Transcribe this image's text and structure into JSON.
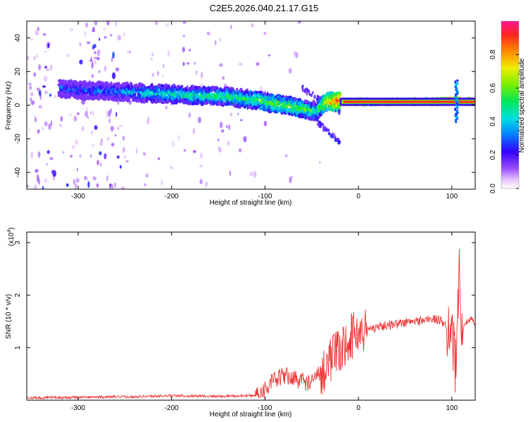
{
  "title": "C2E5.2026.040.21.17.G15",
  "chart_data": [
    {
      "type": "heatmap",
      "xlabel": "Height of straight line (km)",
      "ylabel": "Frequency (Hz)",
      "xlim": [
        -355,
        125
      ],
      "ylim": [
        -50,
        50
      ],
      "x_ticks": [
        -300,
        -200,
        -100,
        0,
        100
      ],
      "x_tick_labels": [
        "-300",
        "-200",
        "-100",
        "0",
        "100"
      ],
      "y_ticks": [
        -40,
        -20,
        0,
        20,
        40
      ],
      "y_tick_labels": [
        "-40",
        "-20",
        "0",
        "20",
        "40"
      ],
      "ridge": {
        "x": [
          -320,
          -300,
          -260,
          -220,
          -180,
          -140,
          -110,
          -80,
          -60,
          -45,
          -35,
          -20,
          0,
          40,
          80,
          100,
          125
        ],
        "freq_hz": [
          10,
          9,
          8,
          7,
          6,
          5,
          3,
          0,
          -2,
          -4,
          2,
          2,
          2,
          2,
          2,
          3,
          2
        ],
        "amplitude": [
          0.3,
          0.3,
          0.35,
          0.45,
          0.5,
          0.5,
          0.55,
          0.6,
          0.55,
          0.5,
          0.7,
          0.9,
          0.95,
          0.95,
          0.95,
          0.9,
          0.9
        ]
      },
      "colorbar": {
        "label": "Normalized spectral amplitude",
        "range": [
          0.0,
          1.0
        ],
        "ticks": [
          0.0,
          0.2,
          0.4,
          0.6,
          0.8
        ],
        "tick_labels": [
          "0.0",
          "0.2",
          "0.4",
          "0.6",
          "0.8"
        ]
      }
    },
    {
      "type": "line",
      "xlabel": "Height of straight line (km)",
      "ylabel": "SNR (10 * v/v)",
      "y_scale_label": "(x10",
      "y_scale_exponent": "4",
      "y_scale_close": ")",
      "xlim": [
        -355,
        125
      ],
      "ylim": [
        0,
        3.2
      ],
      "x_ticks": [
        -300,
        -200,
        -100,
        0,
        100
      ],
      "x_tick_labels": [
        "-300",
        "-200",
        "-100",
        "0",
        "100"
      ],
      "y_ticks": [
        1,
        2,
        3
      ],
      "y_tick_labels": [
        "1",
        "2",
        "3"
      ],
      "color": "#ee3333",
      "series": [
        {
          "name": "SNR",
          "x": [
            -355,
            -300,
            -250,
            -200,
            -150,
            -110,
            -100,
            -90,
            -80,
            -70,
            -60,
            -50,
            -40,
            -30,
            -20,
            -10,
            0,
            10,
            20,
            40,
            60,
            80,
            90,
            95,
            100,
            105,
            108,
            110,
            115,
            120,
            125
          ],
          "values": [
            0.02,
            0.03,
            0.04,
            0.06,
            0.05,
            0.06,
            0.15,
            0.3,
            0.4,
            0.35,
            0.3,
            0.25,
            0.5,
            0.8,
            0.9,
            1.2,
            1.3,
            1.35,
            1.4,
            1.45,
            1.5,
            1.55,
            1.5,
            1.4,
            1.35,
            0.4,
            2.9,
            1.2,
            1.5,
            1.55,
            1.45
          ]
        }
      ]
    }
  ]
}
